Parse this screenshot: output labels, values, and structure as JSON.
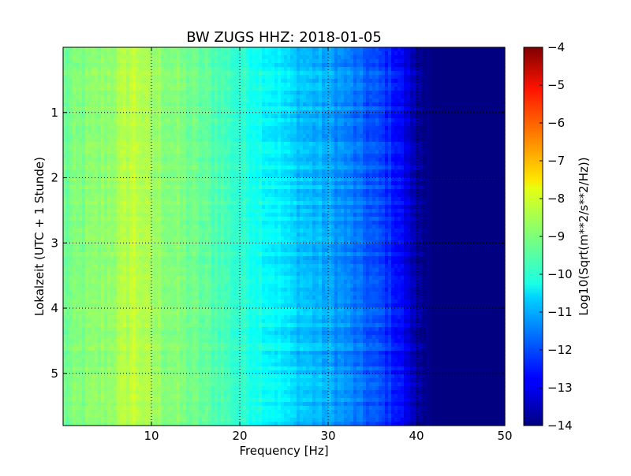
{
  "chart_data": {
    "type": "heatmap",
    "title": "BW ZUGS HHZ: 2018-01-05",
    "xlabel": "Frequency [Hz]",
    "ylabel": "Lokalzeit (UTC + 1 Stunde)",
    "xlim": [
      0,
      50
    ],
    "ylim": [
      0,
      5.8
    ],
    "y_inverted": true,
    "x_ticks": [
      10,
      20,
      30,
      40,
      50
    ],
    "y_ticks": [
      1,
      2,
      3,
      4,
      5
    ],
    "grid": true,
    "colormap": "jet",
    "colorbar": {
      "label": "Log10(Sqrt(m**2/s**2/Hz))",
      "range": [
        -14,
        -4
      ],
      "ticks": [
        -14,
        -13,
        -12,
        -11,
        -10,
        -9,
        -8,
        -7,
        -6,
        -5,
        -4
      ]
    },
    "frequency_profile": {
      "x": [
        0,
        2,
        4,
        6,
        8,
        10,
        12,
        14,
        16,
        18,
        20,
        22,
        24,
        26,
        28,
        30,
        32,
        34,
        36,
        38,
        40,
        42,
        44,
        46,
        48,
        50
      ],
      "values": [
        -9.2,
        -9.0,
        -8.9,
        -8.7,
        -8.3,
        -8.7,
        -8.9,
        -9.1,
        -9.3,
        -9.5,
        -9.8,
        -10.0,
        -10.3,
        -10.7,
        -10.9,
        -11.1,
        -11.4,
        -11.8,
        -12.1,
        -12.6,
        -13.6,
        -14.0,
        -14.0,
        -14.0,
        -14.0,
        -14.0
      ]
    }
  }
}
